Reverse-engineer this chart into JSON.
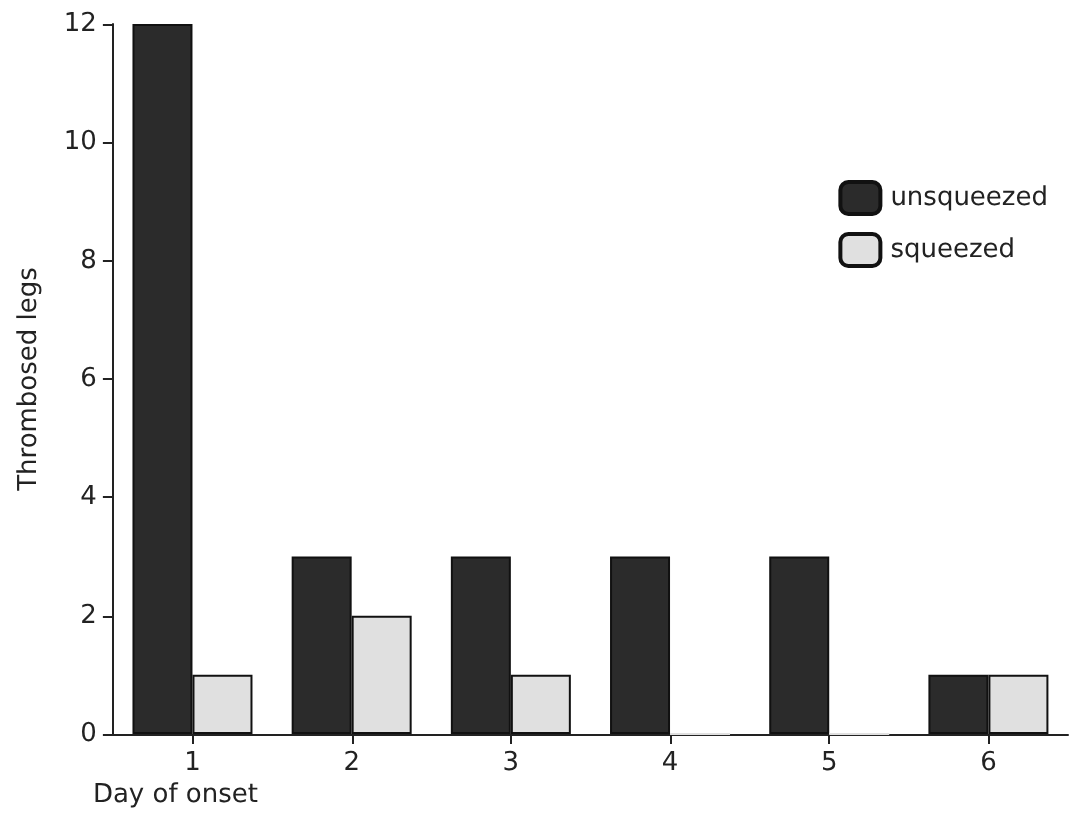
{
  "chart_data": {
    "type": "bar",
    "xlabel": "Day of onset",
    "ylabel": "Thrombosed legs",
    "categories": [
      "1",
      "2",
      "3",
      "4",
      "5",
      "6"
    ],
    "series": [
      {
        "name": "unsqueezed",
        "color": "#2b2b2b",
        "values": [
          12,
          3,
          3,
          3,
          3,
          1
        ]
      },
      {
        "name": "squeezed",
        "color": "#e0e0e0",
        "values": [
          1,
          2,
          1,
          0,
          0,
          1
        ]
      }
    ],
    "ylim": [
      0,
      12
    ],
    "yticks": [
      0,
      2,
      4,
      6,
      8,
      10,
      12
    ],
    "grid": false,
    "legend": "right"
  }
}
